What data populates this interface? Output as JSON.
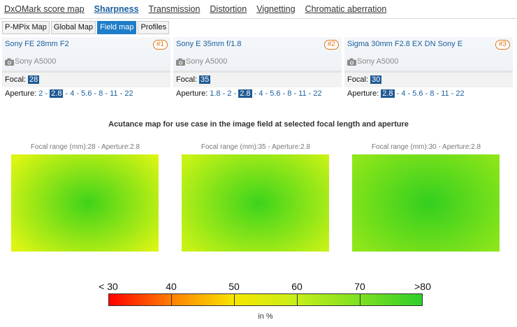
{
  "top_tabs": [
    "DxOMark score map",
    "Sharpness",
    "Transmission",
    "Distortion",
    "Vignetting",
    "Chromatic aberration"
  ],
  "active_top_tab": "Sharpness",
  "sub_tabs": [
    "P-MPix Map",
    "Global Map",
    "Field map",
    "Profiles"
  ],
  "active_sub_tab": "Field map",
  "lenses": [
    {
      "name": "Sony FE 28mm F2",
      "badge": "#1",
      "camera": "Sony A5000",
      "focal_label": "Focal:",
      "focal": "28",
      "aperture_label": "Aperture:",
      "apertures": [
        "2",
        "2.8",
        "4",
        "5.6",
        "8",
        "11",
        "22"
      ],
      "selected_aperture": "2.8"
    },
    {
      "name": "Sony E 35mm f/1.8",
      "badge": "#2",
      "camera": "Sony A5000",
      "focal_label": "Focal:",
      "focal": "35",
      "aperture_label": "Aperture:",
      "apertures": [
        "1.8",
        "2",
        "2.8",
        "4",
        "5.6",
        "8",
        "11",
        "22"
      ],
      "selected_aperture": "2.8"
    },
    {
      "name": "Sigma 30mm F2.8 EX DN Sony E",
      "badge": "#3",
      "camera": "Sony A5000",
      "focal_label": "Focal:",
      "focal": "30",
      "aperture_label": "Aperture:",
      "apertures": [
        "2.8",
        "4",
        "5.6",
        "8",
        "11",
        "22"
      ],
      "selected_aperture": "2.8"
    }
  ],
  "map_title": "Acutance map for use case in the image field at selected focal length and aperture",
  "maps": [
    {
      "caption": "Focal range (mm):28 - Aperture:2.8",
      "center_color": "#3fd31a",
      "edge_color": "#dcf514"
    },
    {
      "caption": "Focal range (mm):35 - Aperture:2.8",
      "center_color": "#3cd41c",
      "edge_color": "#c8f216"
    },
    {
      "caption": "Focal range (mm):30 - Aperture:2.8",
      "center_color": "#33cf1f",
      "edge_color": "#8fe619"
    }
  ],
  "scale": {
    "labels": [
      "< 30",
      "40",
      "50",
      "60",
      "70",
      ">80"
    ],
    "unit": "in %",
    "colors": [
      "#ff0000",
      "#ff8000",
      "#f7e600",
      "#c6ef1a",
      "#7ee020",
      "#2fcf2a"
    ]
  }
}
